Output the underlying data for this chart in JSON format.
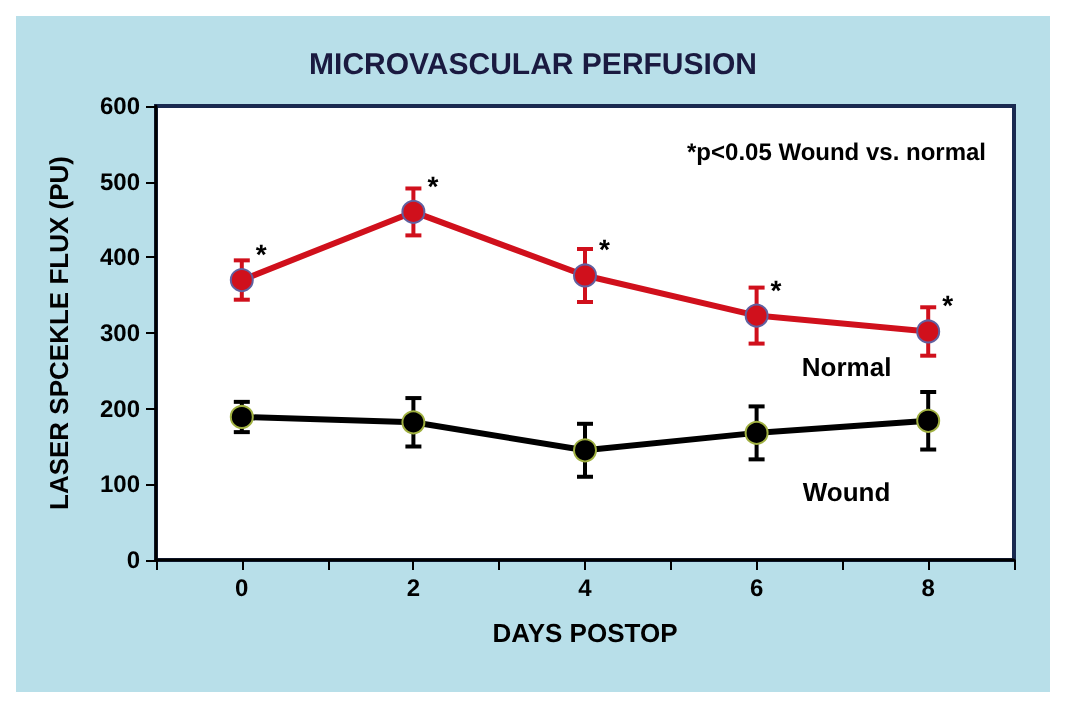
{
  "chart_data": {
    "type": "line",
    "title": "MICROVASCULAR PERFUSION",
    "xlabel": "DAYS POSTOP",
    "ylabel": "LASER SPCEKLE FLUX (PU)",
    "xlim": [
      -1,
      9
    ],
    "xticks": [
      {
        "value": -1,
        "label": null
      },
      0,
      {
        "value": 1,
        "label": null
      },
      2,
      {
        "value": 3,
        "label": null
      },
      4,
      {
        "value": 5,
        "label": null
      },
      6,
      {
        "value": 7,
        "label": null
      },
      8,
      {
        "value": 9,
        "label": null
      }
    ],
    "ylim": [
      0,
      600
    ],
    "yticks": [
      0,
      100,
      200,
      300,
      400,
      500,
      600
    ],
    "grid": false,
    "legend": false,
    "marker": "circle",
    "line_style": "solid",
    "x": [
      0,
      2,
      4,
      6,
      8
    ],
    "series": [
      {
        "name": "Normal",
        "color": "#d0101c",
        "values": [
          370,
          460,
          376,
          323,
          302
        ],
        "errors": [
          26,
          31,
          35,
          37,
          32
        ]
      },
      {
        "name": "Wound",
        "color": "#000000",
        "values": [
          189,
          182,
          145,
          168,
          184
        ],
        "errors": [
          20,
          32,
          35,
          35,
          38
        ]
      }
    ],
    "annotations": [
      "*p<0.05 Wound vs. normal",
      {
        "text": "*",
        "x": 0,
        "y": 370
      },
      {
        "text": "*",
        "x": 2,
        "y": 460
      },
      {
        "text": "*",
        "x": 4,
        "y": 376
      },
      {
        "text": "*",
        "x": 6,
        "y": 323
      },
      {
        "text": "*",
        "x": 8,
        "y": 302
      }
    ]
  }
}
